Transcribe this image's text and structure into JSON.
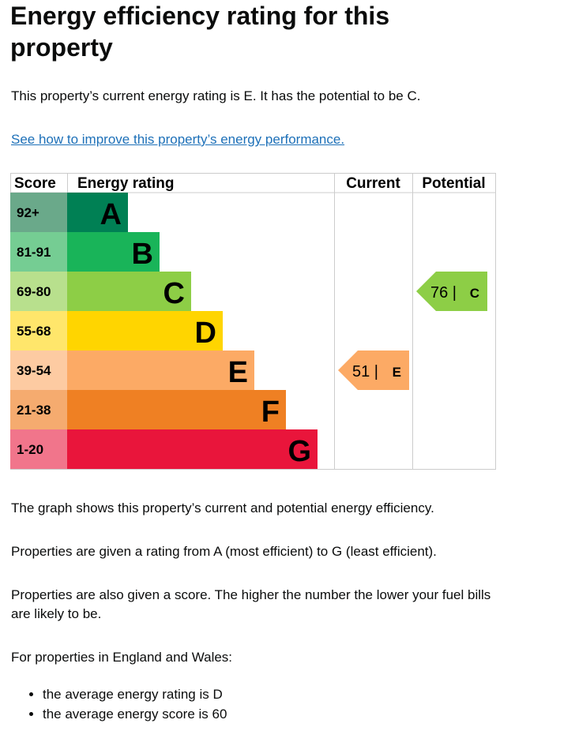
{
  "title": "Energy efficiency rating for this property",
  "intro": "This property’s current energy rating is E. It has the potential to be C.",
  "improve_link": "See how to improve this property’s energy performance.",
  "chart_data": {
    "type": "bar",
    "headers": [
      "Score",
      "Energy rating",
      "Current",
      "Potential"
    ],
    "bands": [
      {
        "score": "92+",
        "letter": "A",
        "color": "#008054",
        "score_color": "#6aa98a"
      },
      {
        "score": "81-91",
        "letter": "B",
        "color": "#19b459",
        "score_color": "#75cd93"
      },
      {
        "score": "69-80",
        "letter": "C",
        "color": "#8dce46",
        "score_color": "#b8e08d"
      },
      {
        "score": "55-68",
        "letter": "D",
        "color": "#ffd500",
        "score_color": "#ffe66b"
      },
      {
        "score": "39-54",
        "letter": "E",
        "color": "#fcaa65",
        "score_color": "#fdcba2"
      },
      {
        "score": "21-38",
        "letter": "F",
        "color": "#ef8023",
        "score_color": "#f5ab6f"
      },
      {
        "score": "1-20",
        "letter": "G",
        "color": "#e9153b",
        "score_color": "#f1758b"
      }
    ],
    "current": {
      "score": 51,
      "letter": "E",
      "label": "51 |",
      "color": "#fcaa65"
    },
    "potential": {
      "score": 76,
      "letter": "C",
      "label": "76 |",
      "color": "#8dce46"
    }
  },
  "paragraphs": [
    "The graph shows this property’s current and potential energy efficiency.",
    "Properties are given a rating from A (most efficient) to G (least efficient).",
    "Properties are also given a score. The higher the number the lower your fuel bills are likely to be.",
    "For properties in England and Wales:"
  ],
  "bullets": [
    "the average energy rating is D",
    "the average energy score is 60"
  ]
}
